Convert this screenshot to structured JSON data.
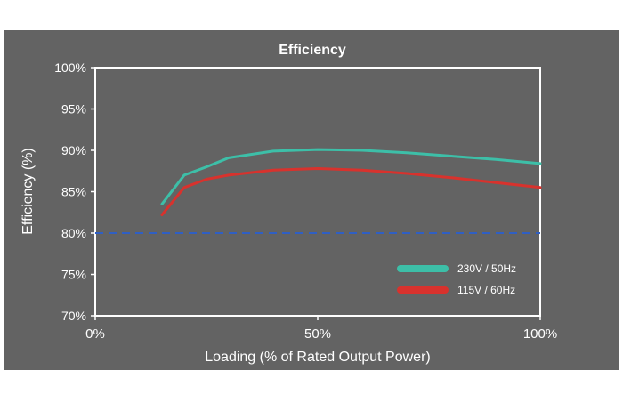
{
  "chart_data": {
    "type": "line",
    "title": "Efficiency",
    "xlabel": "Loading (% of Rated Output Power)",
    "ylabel": "Efficiency (%)",
    "xlim": [
      0,
      100
    ],
    "ylim": [
      70,
      100
    ],
    "x_ticks": [
      "0%",
      "50%",
      "100%"
    ],
    "y_ticks": [
      "100%",
      "95%",
      "90%",
      "85%",
      "80%",
      "75%",
      "70%"
    ],
    "grid": false,
    "legend_position": "bottom-right",
    "reference_line": {
      "y": 80,
      "style": "dashed",
      "color": "#2f5fc4"
    },
    "series": [
      {
        "name": "230V / 50Hz",
        "color": "#3dbfa8",
        "x": [
          15,
          20,
          25,
          30,
          40,
          50,
          60,
          70,
          80,
          90,
          100
        ],
        "y": [
          83.5,
          87.0,
          88.0,
          89.1,
          89.9,
          90.1,
          90.0,
          89.7,
          89.3,
          88.9,
          88.4
        ]
      },
      {
        "name": "115V / 60Hz",
        "color": "#d8322d",
        "x": [
          15,
          20,
          25,
          30,
          40,
          50,
          60,
          70,
          80,
          90,
          100
        ],
        "y": [
          82.2,
          85.5,
          86.5,
          87.0,
          87.6,
          87.8,
          87.6,
          87.2,
          86.7,
          86.1,
          85.5
        ]
      }
    ]
  }
}
